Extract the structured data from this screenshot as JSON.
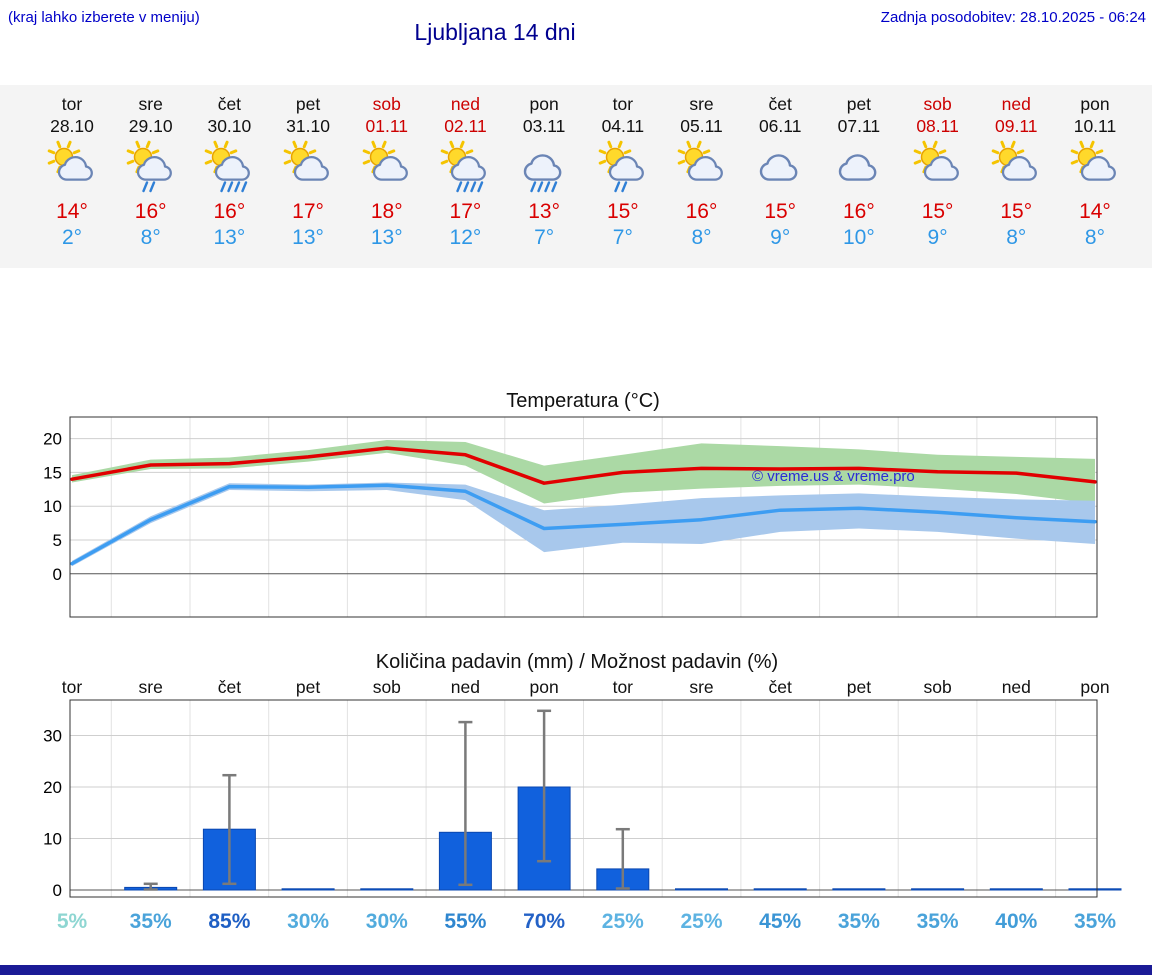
{
  "header": {
    "hint": "(kraj lahko izberete v meniju)",
    "title": "Ljubljana 14 dni",
    "last_update": "Zadnja posodobitev: 28.10.2025 - 06:24"
  },
  "forecast": {
    "days": [
      {
        "name": "tor",
        "date": "28.10",
        "weekend": false,
        "icon": "sun-cloud",
        "high": "14°",
        "low": "2°"
      },
      {
        "name": "sre",
        "date": "29.10",
        "weekend": false,
        "icon": "sun-cloud-rain2",
        "high": "16°",
        "low": "8°"
      },
      {
        "name": "čet",
        "date": "30.10",
        "weekend": false,
        "icon": "sun-cloud-rain3",
        "high": "16°",
        "low": "13°"
      },
      {
        "name": "pet",
        "date": "31.10",
        "weekend": false,
        "icon": "sun-cloud",
        "high": "17°",
        "low": "13°"
      },
      {
        "name": "sob",
        "date": "01.11",
        "weekend": true,
        "icon": "sun-cloud",
        "high": "18°",
        "low": "13°"
      },
      {
        "name": "ned",
        "date": "02.11",
        "weekend": true,
        "icon": "sun-cloud-rain3",
        "high": "17°",
        "low": "12°"
      },
      {
        "name": "pon",
        "date": "03.11",
        "weekend": false,
        "icon": "cloud-rain3",
        "high": "13°",
        "low": "7°"
      },
      {
        "name": "tor",
        "date": "04.11",
        "weekend": false,
        "icon": "sun-cloud-rain2",
        "high": "15°",
        "low": "7°"
      },
      {
        "name": "sre",
        "date": "05.11",
        "weekend": false,
        "icon": "sun-cloud",
        "high": "16°",
        "low": "8°"
      },
      {
        "name": "čet",
        "date": "06.11",
        "weekend": false,
        "icon": "cloud",
        "high": "15°",
        "low": "9°"
      },
      {
        "name": "pet",
        "date": "07.11",
        "weekend": false,
        "icon": "cloud",
        "high": "16°",
        "low": "10°"
      },
      {
        "name": "sob",
        "date": "08.11",
        "weekend": true,
        "icon": "sun-cloud",
        "high": "15°",
        "low": "9°"
      },
      {
        "name": "ned",
        "date": "09.11",
        "weekend": true,
        "icon": "sun-cloud",
        "high": "15°",
        "low": "8°"
      },
      {
        "name": "pon",
        "date": "10.11",
        "weekend": false,
        "icon": "sun-cloud",
        "high": "14°",
        "low": "8°"
      }
    ]
  },
  "chart_data": [
    {
      "type": "line",
      "title": "Temperatura (°C)",
      "ylim": [
        -6.4,
        23.2
      ],
      "yticks": [
        0,
        5,
        10,
        15,
        20
      ],
      "x_days": [
        "tor",
        "sre",
        "čet",
        "pet",
        "sob",
        "ned",
        "pon",
        "tor",
        "sre",
        "čet",
        "pet",
        "sob",
        "ned",
        "pon"
      ],
      "series": [
        {
          "name": "max-temp",
          "color": "#e10000",
          "values": [
            14,
            16.1,
            16.3,
            17.3,
            18.6,
            17.6,
            13.4,
            15,
            15.6,
            15.5,
            15.6,
            15.1,
            14.9,
            13.6
          ]
        },
        {
          "name": "min-temp",
          "color": "#3d9df2",
          "values": [
            1.5,
            8,
            12.9,
            12.8,
            13.1,
            12.2,
            6.7,
            7.3,
            8,
            9.4,
            9.7,
            9.1,
            8.3,
            7.7
          ]
        }
      ],
      "bands": [
        {
          "name": "max-range",
          "color": "#abd9a5",
          "upper": [
            14.6,
            16.9,
            17.2,
            18.3,
            19.8,
            19.5,
            16,
            17.6,
            19.3,
            18.9,
            18.4,
            17.6,
            17.3,
            17
          ],
          "lower": [
            13.5,
            15.5,
            15.6,
            16.6,
            17.9,
            16,
            10.4,
            12,
            12.6,
            13,
            13.2,
            12.6,
            11.8,
            10.4
          ]
        },
        {
          "name": "min-range",
          "color": "#a8c8ec",
          "upper": [
            1.9,
            8.5,
            13.4,
            13.2,
            13.5,
            13.2,
            9.4,
            10.2,
            11.2,
            11.6,
            11.9,
            11.4,
            11,
            10.8
          ],
          "lower": [
            1.1,
            7.5,
            12.4,
            12.2,
            12.4,
            10.9,
            3.2,
            4.6,
            4.4,
            6.2,
            6.7,
            6.2,
            5.2,
            4.4
          ]
        }
      ],
      "watermark": "© vreme.us & vreme.pro"
    },
    {
      "type": "bar",
      "title": "Količina padavin (mm) / Možnost padavin (%)",
      "ylim": [
        -1.4,
        36.9
      ],
      "yticks": [
        0,
        10,
        20,
        30
      ],
      "categories": [
        "tor",
        "sre",
        "čet",
        "pet",
        "sob",
        "ned",
        "pon",
        "tor",
        "sre",
        "čet",
        "pet",
        "sob",
        "ned",
        "pon"
      ],
      "values": [
        0,
        0.5,
        11.8,
        0.1,
        0.1,
        11.2,
        20,
        4.1,
        0.1,
        0.1,
        0.1,
        0.1,
        0.1,
        0.1
      ],
      "err_low": [
        0,
        0.1,
        1.2,
        0,
        0,
        1,
        5.6,
        0.3,
        0,
        0,
        0,
        0,
        0,
        0
      ],
      "err_high": [
        0,
        1.2,
        22.3,
        0,
        0,
        32.6,
        34.8,
        11.8,
        0,
        0,
        0,
        0,
        0,
        0
      ],
      "bar_color": "#1161dd",
      "probabilities": [
        {
          "label": "5%",
          "color": "#8ed6d2"
        },
        {
          "label": "35%",
          "color": "#4aa3da"
        },
        {
          "label": "85%",
          "color": "#1f5fc4"
        },
        {
          "label": "30%",
          "color": "#52abdd"
        },
        {
          "label": "30%",
          "color": "#52abdd"
        },
        {
          "label": "55%",
          "color": "#2f86cf"
        },
        {
          "label": "70%",
          "color": "#2361c6"
        },
        {
          "label": "25%",
          "color": "#5db3e2"
        },
        {
          "label": "25%",
          "color": "#5db3e2"
        },
        {
          "label": "45%",
          "color": "#3b95d5"
        },
        {
          "label": "35%",
          "color": "#4aa3da"
        },
        {
          "label": "35%",
          "color": "#4aa3da"
        },
        {
          "label": "40%",
          "color": "#429dd8"
        },
        {
          "label": "35%",
          "color": "#4aa3da"
        }
      ]
    }
  ]
}
